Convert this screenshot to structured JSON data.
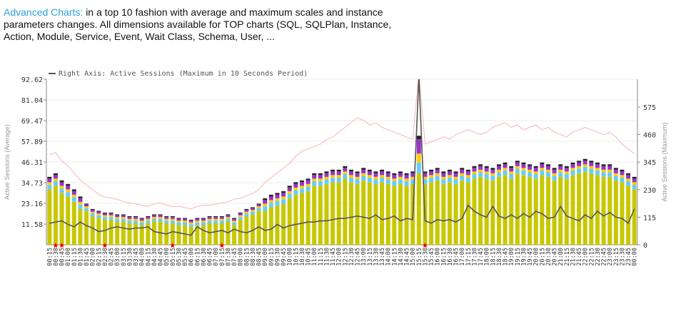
{
  "header": {
    "link": "Advanced Charts:",
    "text": "in a top 10 fashion with average and maximum scales and instance parameters changes. All dimensions available for TOP charts (SQL, SQLPlan, Instance, Action, Module, Service, Event, Wait Class, Schema, User, ..."
  },
  "chart_data": {
    "type": "bar",
    "stacked": true,
    "ylabel": "Active Sessions (Average)",
    "y2label": "Active Sessions (Maximum)",
    "ylim": [
      0,
      92.62
    ],
    "yticks": [
      11.58,
      23.16,
      34.73,
      46.31,
      57.89,
      69.47,
      81.04,
      92.62
    ],
    "y2lim": [
      0,
      691
    ],
    "y2ticks": [
      0,
      115,
      230,
      345,
      460,
      575
    ],
    "grid": true,
    "categories": [
      "00:15",
      "00:30",
      "00:45",
      "01:00",
      "01:15",
      "01:30",
      "01:45",
      "02:00",
      "02:15",
      "02:30",
      "02:45",
      "03:00",
      "03:15",
      "03:30",
      "03:45",
      "04:00",
      "04:15",
      "04:30",
      "04:45",
      "05:00",
      "05:15",
      "05:30",
      "05:45",
      "06:00",
      "06:15",
      "06:30",
      "06:45",
      "07:00",
      "07:15",
      "07:30",
      "07:45",
      "08:00",
      "08:15",
      "08:30",
      "08:45",
      "09:00",
      "09:15",
      "09:30",
      "09:45",
      "10:00",
      "10:15",
      "10:30",
      "10:45",
      "11:00",
      "11:15",
      "11:30",
      "11:45",
      "12:00",
      "12:15",
      "12:30",
      "12:45",
      "13:00",
      "13:15",
      "13:30",
      "13:45",
      "14:00",
      "14:15",
      "14:30",
      "14:45",
      "15:00",
      "15:15",
      "15:30",
      "15:45",
      "16:00",
      "16:15",
      "16:30",
      "16:45",
      "17:00",
      "17:15",
      "17:30",
      "17:45",
      "18:00",
      "18:15",
      "18:30",
      "18:45",
      "19:00",
      "19:15",
      "19:30",
      "19:45",
      "20:00",
      "20:15",
      "20:30",
      "20:45",
      "21:00",
      "21:15",
      "21:30",
      "21:45",
      "22:00",
      "22:15",
      "22:30",
      "22:45",
      "23:00",
      "23:15",
      "23:30",
      "23:45",
      "00:00"
    ],
    "series": [
      {
        "color": "#c8c800",
        "values": [
          31,
          33,
          29,
          27,
          24,
          20,
          19,
          16,
          15,
          14,
          14,
          13,
          13,
          12,
          12,
          11,
          12,
          13,
          13,
          12,
          12,
          11,
          11,
          10,
          11,
          11,
          12,
          12,
          12,
          13,
          11,
          14,
          16,
          17,
          19,
          19,
          21,
          22,
          23,
          26,
          28,
          29,
          30,
          33,
          33,
          34,
          35,
          35,
          37,
          35,
          34,
          36,
          35,
          34,
          35,
          34,
          33,
          34,
          33,
          34,
          40,
          34,
          35,
          36,
          34,
          35,
          34,
          36,
          35,
          37,
          38,
          37,
          36,
          38,
          39,
          37,
          40,
          39,
          38,
          37,
          39,
          38,
          36,
          38,
          37,
          39,
          40,
          41,
          40,
          39,
          38,
          38,
          36,
          35,
          33,
          31
        ]
      },
      {
        "color": "#66ccff",
        "values": [
          2.5,
          2.5,
          2.5,
          2.5,
          2.5,
          2.5,
          1.5,
          1.5,
          1.5,
          1.5,
          1.5,
          1.5,
          1.5,
          1.5,
          1.5,
          1.5,
          1.5,
          1.5,
          1.5,
          1.5,
          1.5,
          1.5,
          1.5,
          1.5,
          1.5,
          1.5,
          1.5,
          1.5,
          1.5,
          1.5,
          1.5,
          1.5,
          1.5,
          1.5,
          1.5,
          2.5,
          2.5,
          2.5,
          2.5,
          2.5,
          2.5,
          2.5,
          2.5,
          2.5,
          2.5,
          2.5,
          2.5,
          2.5,
          2.5,
          2.5,
          2.5,
          2.5,
          2.5,
          2.5,
          2.5,
          2.5,
          2.5,
          2.5,
          2.5,
          2.5,
          6,
          2.5,
          2.5,
          2.5,
          2.5,
          2.5,
          2.5,
          2.5,
          2.5,
          2.5,
          2.5,
          2.5,
          2.5,
          2.5,
          2.5,
          2.5,
          2.5,
          2.5,
          2.5,
          2.5,
          2.5,
          2.5,
          2.5,
          2.5,
          2.5,
          2.5,
          2.5,
          2.5,
          2.5,
          2.5,
          2.5,
          2.5,
          2.5,
          2.5,
          2.5,
          2.5
        ]
      },
      {
        "color": "#ffcc00",
        "values": [
          1.5,
          1.5,
          1.5,
          1.5,
          1.5,
          1.5,
          1,
          1,
          1,
          1,
          1,
          1,
          1,
          1,
          1,
          1,
          1,
          1,
          1,
          1,
          1,
          1,
          1,
          1,
          1,
          1,
          1,
          1,
          1,
          1,
          1,
          1,
          1,
          1,
          1,
          1.5,
          1.5,
          1.5,
          1.5,
          1.5,
          1.5,
          1.5,
          1.5,
          1.5,
          1.5,
          1.5,
          1.5,
          1.5,
          1.5,
          1.5,
          1.5,
          1.5,
          1.5,
          1.5,
          1.5,
          1.5,
          1.5,
          1.5,
          1.5,
          1.5,
          5,
          1.5,
          1.5,
          1.5,
          1.5,
          1.5,
          1.5,
          1.5,
          1.5,
          1.5,
          1.5,
          1.5,
          1.5,
          1.5,
          1.5,
          1.5,
          1.5,
          1.5,
          1.5,
          1.5,
          1.5,
          1.5,
          1.5,
          1.5,
          1.5,
          1.5,
          1.5,
          1.5,
          1.5,
          1.5,
          1.5,
          1.5,
          1.5,
          1.5,
          1.5,
          1.5
        ]
      },
      {
        "color": "#9933cc",
        "values": [
          2,
          2,
          2,
          2,
          2,
          2,
          1,
          1,
          1,
          1,
          1,
          1,
          1,
          1,
          1,
          1,
          1,
          1,
          1,
          1,
          1,
          1,
          1,
          1,
          1,
          1,
          1,
          1,
          1,
          1,
          1,
          1,
          1,
          1,
          1,
          2,
          2,
          2,
          2,
          2,
          2,
          2,
          2,
          2,
          2,
          2,
          2,
          2,
          2,
          2,
          2,
          2,
          2,
          2,
          2,
          2,
          2,
          2,
          2,
          2,
          8,
          2,
          2,
          2,
          2,
          2,
          2,
          2,
          2,
          2,
          2,
          2,
          2,
          2,
          2,
          2,
          2,
          2,
          2,
          2,
          2,
          2,
          2,
          2,
          2,
          2,
          2,
          2,
          2,
          2,
          2,
          2,
          2,
          2,
          2,
          2
        ]
      },
      {
        "color": "#222222",
        "values": [
          1,
          1,
          1,
          1,
          1,
          1,
          0.5,
          0.5,
          0.5,
          0.5,
          0.5,
          0.5,
          0.5,
          0.5,
          0.5,
          0.5,
          0.5,
          0.5,
          0.5,
          0.5,
          0.5,
          0.5,
          0.5,
          0.5,
          0.5,
          0.5,
          0.5,
          0.5,
          0.5,
          0.5,
          0.5,
          0.5,
          0.5,
          0.5,
          0.5,
          1,
          1,
          1,
          1,
          1,
          1,
          1,
          1,
          1,
          1,
          1,
          1,
          1,
          1,
          1,
          1,
          1,
          1,
          1,
          1,
          1,
          1,
          1,
          1,
          1,
          2,
          1,
          1,
          1,
          1,
          1,
          1,
          1,
          1,
          1,
          1,
          1,
          1,
          1,
          1,
          1,
          1,
          1,
          1,
          1,
          1,
          1,
          1,
          1,
          1,
          1,
          1,
          1,
          1,
          1,
          1,
          1,
          1,
          1,
          1,
          1
        ]
      }
    ],
    "lines": [
      {
        "color": "#f5b5b5",
        "axis": "y2",
        "values": [
          375,
          385,
          350,
          330,
          300,
          270,
          250,
          230,
          210,
          200,
          195,
          190,
          180,
          175,
          170,
          165,
          160,
          170,
          175,
          165,
          160,
          160,
          155,
          150,
          160,
          165,
          165,
          170,
          175,
          180,
          190,
          195,
          205,
          215,
          230,
          260,
          280,
          300,
          320,
          340,
          370,
          390,
          400,
          410,
          420,
          440,
          450,
          470,
          490,
          510,
          530,
          520,
          500,
          510,
          490,
          480,
          470,
          460,
          450,
          440,
          720,
          420,
          430,
          440,
          450,
          440,
          460,
          470,
          480,
          470,
          460,
          470,
          490,
          500,
          510,
          490,
          500,
          480,
          490,
          500,
          480,
          490,
          470,
          460,
          450,
          470,
          480,
          490,
          480,
          470,
          460,
          470,
          450,
          420,
          400,
          380
        ]
      },
      {
        "name": "Right Axis: Active Sessions (Maximum in 10 Seconds Period)",
        "color": "#555555",
        "axis": "y2",
        "values": [
          90,
          95,
          100,
          85,
          75,
          95,
          80,
          70,
          55,
          60,
          70,
          75,
          70,
          65,
          70,
          70,
          75,
          55,
          50,
          45,
          55,
          50,
          45,
          40,
          75,
          60,
          50,
          55,
          60,
          50,
          65,
          55,
          50,
          60,
          75,
          60,
          65,
          85,
          70,
          80,
          85,
          90,
          95,
          95,
          100,
          100,
          105,
          110,
          110,
          115,
          120,
          115,
          110,
          125,
          105,
          110,
          120,
          100,
          110,
          105,
          700,
          100,
          90,
          105,
          100,
          105,
          95,
          110,
          165,
          140,
          125,
          115,
          160,
          120,
          110,
          125,
          110,
          130,
          115,
          140,
          130,
          110,
          115,
          160,
          120,
          110,
          100,
          125,
          110,
          140,
          120,
          135,
          115,
          110,
          90,
          150
        ]
      }
    ],
    "markers": [
      "00:30",
      "00:45",
      "02:30",
      "05:15",
      "07:15",
      "15:30"
    ]
  }
}
